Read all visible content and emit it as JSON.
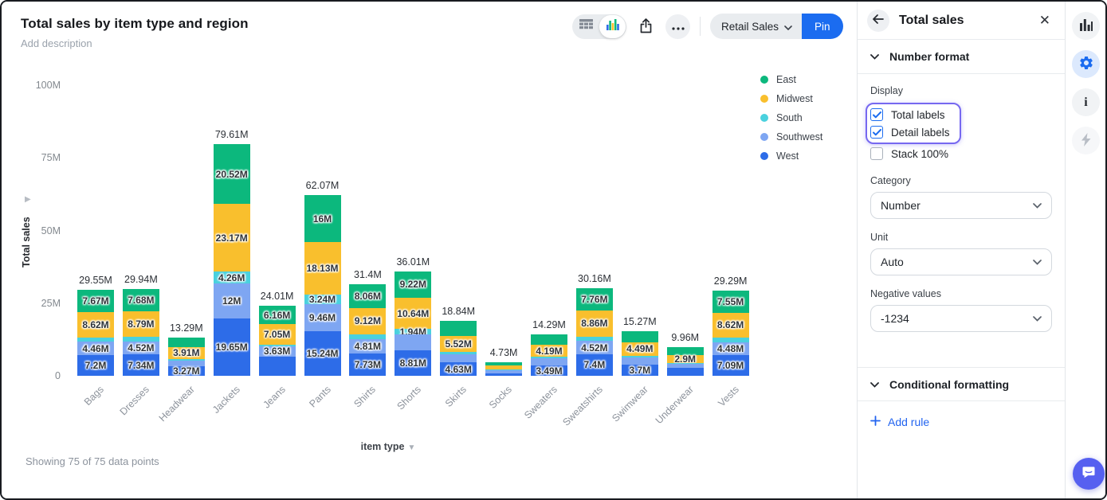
{
  "header": {
    "title": "Total sales by item type and region",
    "description": "Add description"
  },
  "toolbar": {
    "dataset_button": "Retail Sales",
    "pin_button": "Pin"
  },
  "status_bar": {
    "showing": "Showing 75 of 75 data points"
  },
  "panel": {
    "title": "Total sales",
    "sections": {
      "number_format": "Number format",
      "conditional_formatting": "Conditional formatting"
    },
    "display": {
      "label": "Display",
      "options": [
        {
          "label": "Total labels",
          "checked": true,
          "highlighted": true
        },
        {
          "label": "Detail labels",
          "checked": true,
          "highlighted": true
        },
        {
          "label": "Stack 100%",
          "checked": false,
          "highlighted": false
        }
      ]
    },
    "fields": [
      {
        "label": "Category",
        "value": "Number"
      },
      {
        "label": "Unit",
        "value": "Auto"
      },
      {
        "label": "Negative values",
        "value": "-1234"
      }
    ],
    "add_rule": "Add rule"
  },
  "colors": {
    "accent_blue": "#1b6cf0",
    "focus_ring": "#7668f0",
    "chat_bubble": "#5660f0"
  },
  "chart_data": {
    "type": "bar",
    "stacked": true,
    "title": "Total sales by item type and region",
    "xlabel": "item type",
    "ylabel": "Total sales",
    "unit": "M",
    "ylim": [
      0,
      100
    ],
    "ytick_labels": [
      "100M",
      "75M",
      "50M",
      "25M",
      "0"
    ],
    "legend_position": "top-right",
    "legend": [
      {
        "name": "East",
        "color": "#0cb87d"
      },
      {
        "name": "Midwest",
        "color": "#f9bf2d"
      },
      {
        "name": "South",
        "color": "#4ad1de"
      },
      {
        "name": "Southwest",
        "color": "#7ea6f2"
      },
      {
        "name": "West",
        "color": "#2d6ce8"
      }
    ],
    "bars": [
      {
        "category": "Bags",
        "total_label": "29.55M",
        "segments": [
          {
            "region": "East",
            "value": 7.67,
            "label": "7.67M"
          },
          {
            "region": "Midwest",
            "value": 8.62,
            "label": "8.62M"
          },
          {
            "region": "South",
            "value": 1.6,
            "label": ""
          },
          {
            "region": "Southwest",
            "value": 4.46,
            "label": "4.46M"
          },
          {
            "region": "West",
            "value": 7.2,
            "label": "7.2M"
          }
        ]
      },
      {
        "category": "Dresses",
        "total_label": "29.94M",
        "segments": [
          {
            "region": "East",
            "value": 7.68,
            "label": "7.68M"
          },
          {
            "region": "Midwest",
            "value": 8.79,
            "label": "8.79M"
          },
          {
            "region": "South",
            "value": 1.61,
            "label": ""
          },
          {
            "region": "Southwest",
            "value": 4.52,
            "label": "4.52M"
          },
          {
            "region": "West",
            "value": 7.34,
            "label": "7.34M"
          }
        ]
      },
      {
        "category": "Headwear",
        "total_label": "13.29M",
        "segments": [
          {
            "region": "East",
            "value": 3.5,
            "label": ""
          },
          {
            "region": "Midwest",
            "value": 3.91,
            "label": "3.91M"
          },
          {
            "region": "South",
            "value": 0.75,
            "label": ""
          },
          {
            "region": "Southwest",
            "value": 1.86,
            "label": ""
          },
          {
            "region": "West",
            "value": 3.27,
            "label": "3.27M"
          }
        ]
      },
      {
        "category": "Jackets",
        "total_label": "79.61M",
        "segments": [
          {
            "region": "East",
            "value": 20.52,
            "label": "20.52M"
          },
          {
            "region": "Midwest",
            "value": 23.17,
            "label": "23.17M"
          },
          {
            "region": "South",
            "value": 4.26,
            "label": "4.26M"
          },
          {
            "region": "Southwest",
            "value": 12,
            "label": "12M"
          },
          {
            "region": "West",
            "value": 19.65,
            "label": "19.65M"
          }
        ]
      },
      {
        "category": "Jeans",
        "total_label": "24.01M",
        "segments": [
          {
            "region": "East",
            "value": 6.16,
            "label": "6.16M"
          },
          {
            "region": "Midwest",
            "value": 7.05,
            "label": "7.05M"
          },
          {
            "region": "South",
            "value": 0.55,
            "label": ""
          },
          {
            "region": "Southwest",
            "value": 3.63,
            "label": "3.63M"
          },
          {
            "region": "West",
            "value": 6.62,
            "label": ""
          }
        ]
      },
      {
        "category": "Pants",
        "total_label": "62.07M",
        "segments": [
          {
            "region": "East",
            "value": 16,
            "label": "16M"
          },
          {
            "region": "Midwest",
            "value": 18.13,
            "label": "18.13M"
          },
          {
            "region": "South",
            "value": 3.24,
            "label": "3.24M"
          },
          {
            "region": "Southwest",
            "value": 9.46,
            "label": "9.46M"
          },
          {
            "region": "West",
            "value": 15.24,
            "label": "15.24M"
          }
        ]
      },
      {
        "category": "Shirts",
        "total_label": "31.4M",
        "segments": [
          {
            "region": "East",
            "value": 8.06,
            "label": "8.06M"
          },
          {
            "region": "Midwest",
            "value": 9.12,
            "label": "9.12M"
          },
          {
            "region": "South",
            "value": 1.68,
            "label": ""
          },
          {
            "region": "Southwest",
            "value": 4.81,
            "label": "4.81M"
          },
          {
            "region": "West",
            "value": 7.73,
            "label": "7.73M"
          }
        ]
      },
      {
        "category": "Shorts",
        "total_label": "36.01M",
        "segments": [
          {
            "region": "East",
            "value": 9.22,
            "label": "9.22M"
          },
          {
            "region": "Midwest",
            "value": 10.64,
            "label": "10.64M"
          },
          {
            "region": "South",
            "value": 1.94,
            "label": "1.94M"
          },
          {
            "region": "Southwest",
            "value": 5.4,
            "label": ""
          },
          {
            "region": "West",
            "value": 8.81,
            "label": "8.81M"
          }
        ]
      },
      {
        "category": "Skirts",
        "total_label": "18.84M",
        "segments": [
          {
            "region": "East",
            "value": 5.2,
            "label": ""
          },
          {
            "region": "Midwest",
            "value": 5.52,
            "label": "5.52M"
          },
          {
            "region": "South",
            "value": 0.8,
            "label": ""
          },
          {
            "region": "Southwest",
            "value": 2.69,
            "label": ""
          },
          {
            "region": "West",
            "value": 4.63,
            "label": "4.63M"
          }
        ]
      },
      {
        "category": "Socks",
        "total_label": "4.73M",
        "segments": [
          {
            "region": "East",
            "value": 1.3,
            "label": ""
          },
          {
            "region": "Midwest",
            "value": 1.25,
            "label": ""
          },
          {
            "region": "South",
            "value": 0.38,
            "label": ""
          },
          {
            "region": "Southwest",
            "value": 0.85,
            "label": ""
          },
          {
            "region": "West",
            "value": 0.95,
            "label": ""
          }
        ]
      },
      {
        "category": "Sweaters",
        "total_label": "14.29M",
        "segments": [
          {
            "region": "East",
            "value": 3.6,
            "label": ""
          },
          {
            "region": "Midwest",
            "value": 4.19,
            "label": "4.19M"
          },
          {
            "region": "South",
            "value": 0.55,
            "label": ""
          },
          {
            "region": "Southwest",
            "value": 2.46,
            "label": ""
          },
          {
            "region": "West",
            "value": 3.49,
            "label": "3.49M"
          }
        ]
      },
      {
        "category": "Sweatshirts",
        "total_label": "30.16M",
        "segments": [
          {
            "region": "East",
            "value": 7.76,
            "label": "7.76M"
          },
          {
            "region": "Midwest",
            "value": 8.86,
            "label": "8.86M"
          },
          {
            "region": "South",
            "value": 1.62,
            "label": ""
          },
          {
            "region": "Southwest",
            "value": 4.52,
            "label": "4.52M"
          },
          {
            "region": "West",
            "value": 7.4,
            "label": "7.4M"
          }
        ]
      },
      {
        "category": "Swimwear",
        "total_label": "15.27M",
        "segments": [
          {
            "region": "East",
            "value": 3.8,
            "label": ""
          },
          {
            "region": "Midwest",
            "value": 4.49,
            "label": "4.49M"
          },
          {
            "region": "South",
            "value": 0.6,
            "label": ""
          },
          {
            "region": "Southwest",
            "value": 2.68,
            "label": ""
          },
          {
            "region": "West",
            "value": 3.7,
            "label": "3.7M"
          }
        ]
      },
      {
        "category": "Underwear",
        "total_label": "9.96M",
        "segments": [
          {
            "region": "East",
            "value": 2.7,
            "label": ""
          },
          {
            "region": "Midwest",
            "value": 2.9,
            "label": "2.9M"
          },
          {
            "region": "South",
            "value": 0.3,
            "label": ""
          },
          {
            "region": "Southwest",
            "value": 1.36,
            "label": ""
          },
          {
            "region": "West",
            "value": 2.7,
            "label": ""
          }
        ]
      },
      {
        "category": "Vests",
        "total_label": "29.29M",
        "segments": [
          {
            "region": "East",
            "value": 7.55,
            "label": "7.55M"
          },
          {
            "region": "Midwest",
            "value": 8.62,
            "label": "8.62M"
          },
          {
            "region": "South",
            "value": 1.55,
            "label": ""
          },
          {
            "region": "Southwest",
            "value": 4.48,
            "label": "4.48M"
          },
          {
            "region": "West",
            "value": 7.09,
            "label": "7.09M"
          }
        ]
      }
    ]
  }
}
